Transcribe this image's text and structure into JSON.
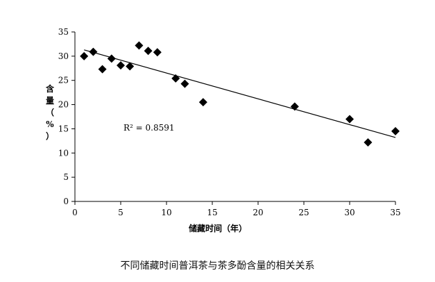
{
  "caption": "不同储藏时间普洱茶与茶多酚含量的相关关系",
  "chart_data": {
    "type": "scatter",
    "title": "",
    "xlabel": "储藏时间（年）",
    "ylabel": "含量（%）",
    "xlim": [
      0,
      35
    ],
    "ylim": [
      0,
      35
    ],
    "xticks": [
      "0",
      "5",
      "10",
      "15",
      "20",
      "25",
      "30",
      "35"
    ],
    "yticks": [
      "0",
      "5",
      "10",
      "15",
      "20",
      "25",
      "30",
      "35"
    ],
    "grid": false,
    "legend": "none",
    "marker": "diamond",
    "marker_color": "#000000",
    "points": [
      {
        "x": 1,
        "y": 30.0
      },
      {
        "x": 2,
        "y": 30.9
      },
      {
        "x": 3,
        "y": 27.3
      },
      {
        "x": 4,
        "y": 29.5
      },
      {
        "x": 5,
        "y": 28.1
      },
      {
        "x": 6,
        "y": 27.9
      },
      {
        "x": 7,
        "y": 32.2
      },
      {
        "x": 8,
        "y": 31.1
      },
      {
        "x": 9,
        "y": 30.8
      },
      {
        "x": 11,
        "y": 25.4
      },
      {
        "x": 12,
        "y": 24.3
      },
      {
        "x": 14,
        "y": 20.5
      },
      {
        "x": 24,
        "y": 19.6
      },
      {
        "x": 30,
        "y": 17.0
      },
      {
        "x": 32,
        "y": 12.2
      },
      {
        "x": 35,
        "y": 14.5
      }
    ],
    "trendline": {
      "type": "linear",
      "from": {
        "x": 1,
        "y": 31.3
      },
      "to": {
        "x": 35,
        "y": 13.2
      }
    },
    "annotation": "R² = 0.8591"
  }
}
